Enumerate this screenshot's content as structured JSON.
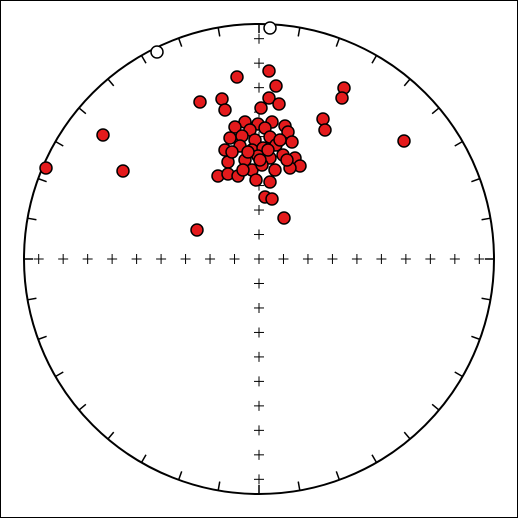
{
  "chart_data": {
    "type": "scatter",
    "xlim": [
      -235,
      235
    ],
    "ylim": [
      -235,
      235
    ],
    "series": [
      {
        "color": "#e41a1c",
        "x": [
          10,
          -22,
          17,
          85,
          83,
          -59,
          -37,
          10,
          -34,
          2,
          20,
          64,
          66,
          -156,
          145,
          -14,
          -1,
          13,
          -24,
          -9,
          6,
          26,
          -29,
          -17,
          -4,
          11,
          29,
          -34,
          -19,
          -7,
          4,
          17,
          33,
          -31,
          -14,
          -1,
          11,
          24,
          36,
          41,
          -41,
          -31,
          -21,
          -7,
          3,
          16,
          31,
          -3,
          11,
          -136,
          -213,
          6,
          13,
          25,
          -62,
          -11,
          -27,
          21,
          1,
          9,
          28,
          -16
        ],
        "y": [
          188,
          182,
          173,
          171,
          161,
          157,
          160,
          161,
          149,
          151,
          155,
          140,
          129,
          124,
          118,
          137,
          135,
          137,
          132,
          129,
          131,
          133,
          121,
          123,
          119,
          122,
          127,
          109,
          113,
          109,
          111,
          114,
          117,
          97,
          99,
          103,
          101,
          104,
          101,
          93,
          83,
          85,
          83,
          89,
          94,
          89,
          91,
          79,
          77,
          88,
          91,
          62,
          60,
          41,
          29,
          107,
          107,
          119,
          99,
          109,
          99,
          89
        ]
      },
      {
        "color": "#ffffff",
        "x": [
          11,
          -102
        ],
        "y": [
          231,
          207
        ]
      }
    ]
  }
}
